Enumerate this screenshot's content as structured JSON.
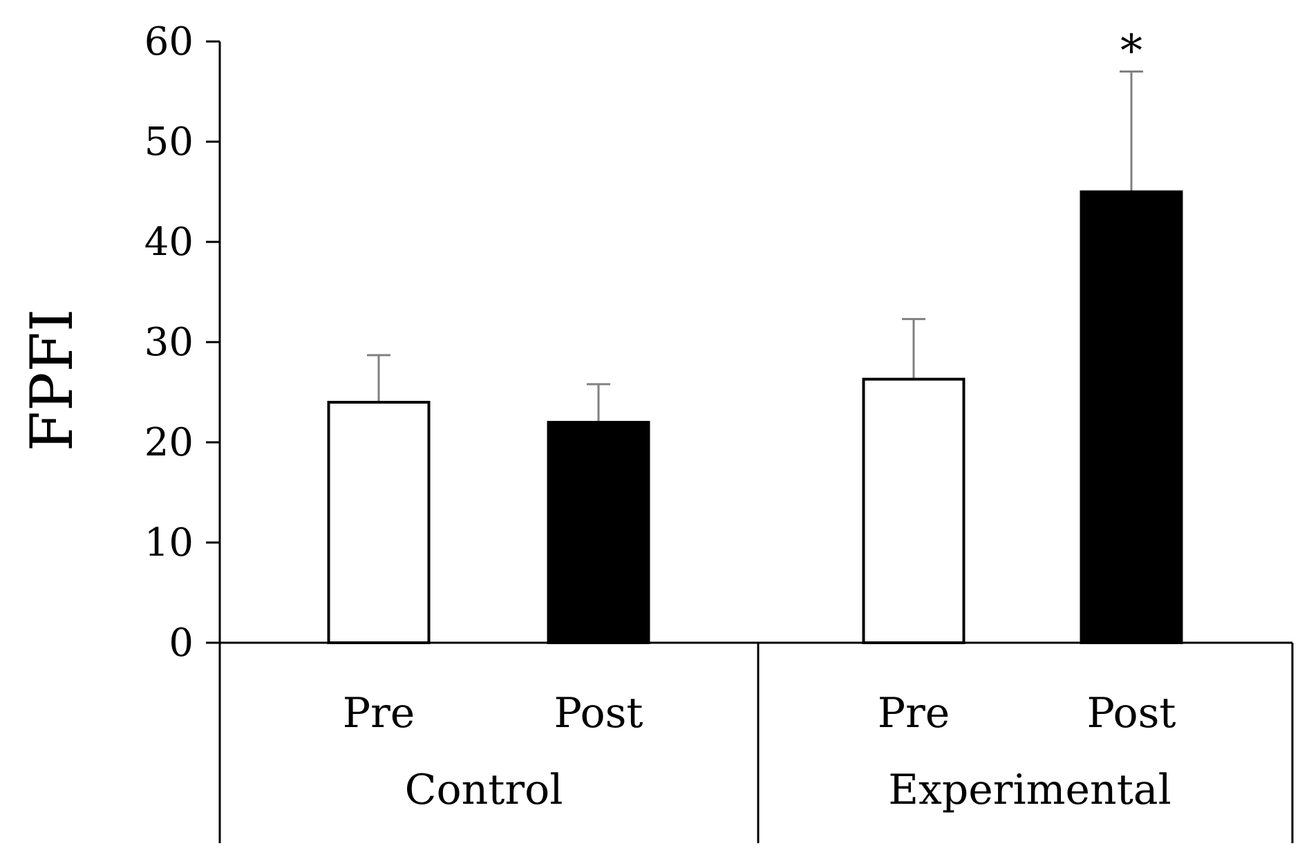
{
  "chart_data": {
    "type": "bar",
    "title": "",
    "xlabel": "",
    "ylabel": "FPFI",
    "ylim": [
      0,
      60
    ],
    "yticks": [
      0,
      10,
      20,
      30,
      40,
      50,
      60
    ],
    "grid": false,
    "groups": [
      {
        "name": "Control",
        "bars": [
          {
            "category": "Pre",
            "value": 24,
            "error": 4.7,
            "fill": "white",
            "significance": ""
          },
          {
            "category": "Post",
            "value": 22,
            "error": 3.8,
            "fill": "black",
            "significance": ""
          }
        ]
      },
      {
        "name": "Experimental",
        "bars": [
          {
            "category": "Pre",
            "value": 26.3,
            "error": 6,
            "fill": "white",
            "significance": ""
          },
          {
            "category": "Post",
            "value": 45,
            "error": 12,
            "fill": "black",
            "significance": "*"
          }
        ]
      }
    ]
  },
  "colors": {
    "pre_fill": "#ffffff",
    "post_fill": "#000000",
    "outline": "#000000",
    "axis": "#000000",
    "error_bar": "#808080"
  }
}
